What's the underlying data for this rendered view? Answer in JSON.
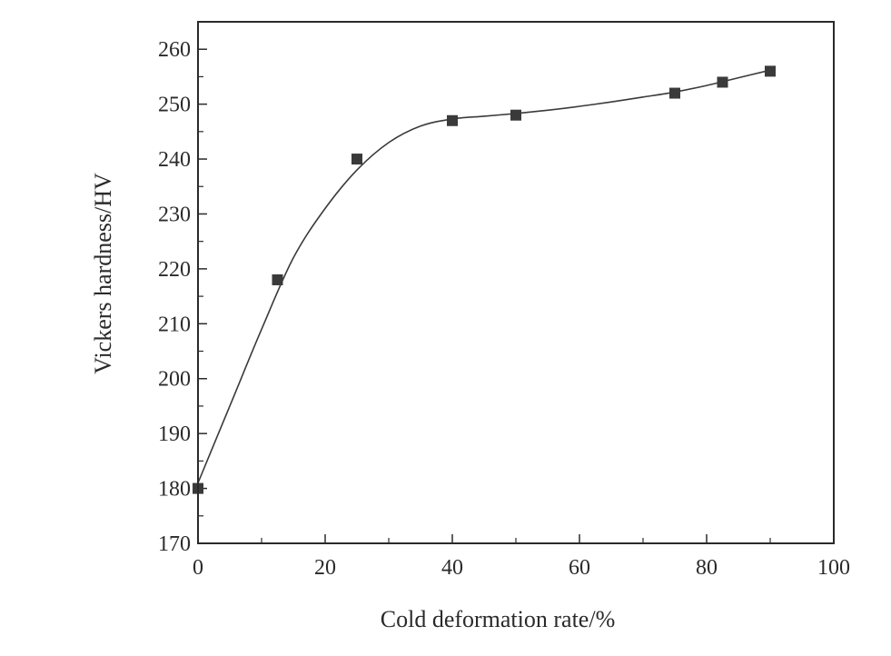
{
  "chart_data": {
    "type": "scatter",
    "title": "",
    "xlabel": "Cold deformation rate/%",
    "ylabel": "Vickers hardness/HV",
    "xlim": [
      0,
      100
    ],
    "ylim": [
      170,
      265
    ],
    "xticks": [
      0,
      20,
      40,
      60,
      80,
      100
    ],
    "yticks": [
      170,
      180,
      190,
      200,
      210,
      220,
      230,
      240,
      250,
      260
    ],
    "grid": false,
    "legend": "none",
    "series": [
      {
        "marker": "square",
        "x": [
          0,
          12.5,
          25,
          40,
          50,
          75,
          82.5,
          90
        ],
        "y": [
          180,
          218,
          240,
          247,
          248,
          252,
          254,
          256
        ]
      }
    ],
    "fit_curve": {
      "style": "smooth line",
      "x": [
        0,
        5,
        10,
        15,
        20,
        25,
        30,
        35,
        40,
        45,
        50,
        55,
        60,
        65,
        70,
        75,
        80,
        85,
        90
      ],
      "y": [
        181,
        195,
        209,
        222,
        231,
        238,
        243,
        246,
        247.3,
        247.8,
        248.3,
        248.9,
        249.6,
        250.4,
        251.3,
        252.2,
        253.4,
        254.8,
        256.2
      ]
    },
    "colors": {
      "marker": "#3a3a3a",
      "line": "#3a3a3a",
      "axes": "#2a2a2a"
    }
  }
}
